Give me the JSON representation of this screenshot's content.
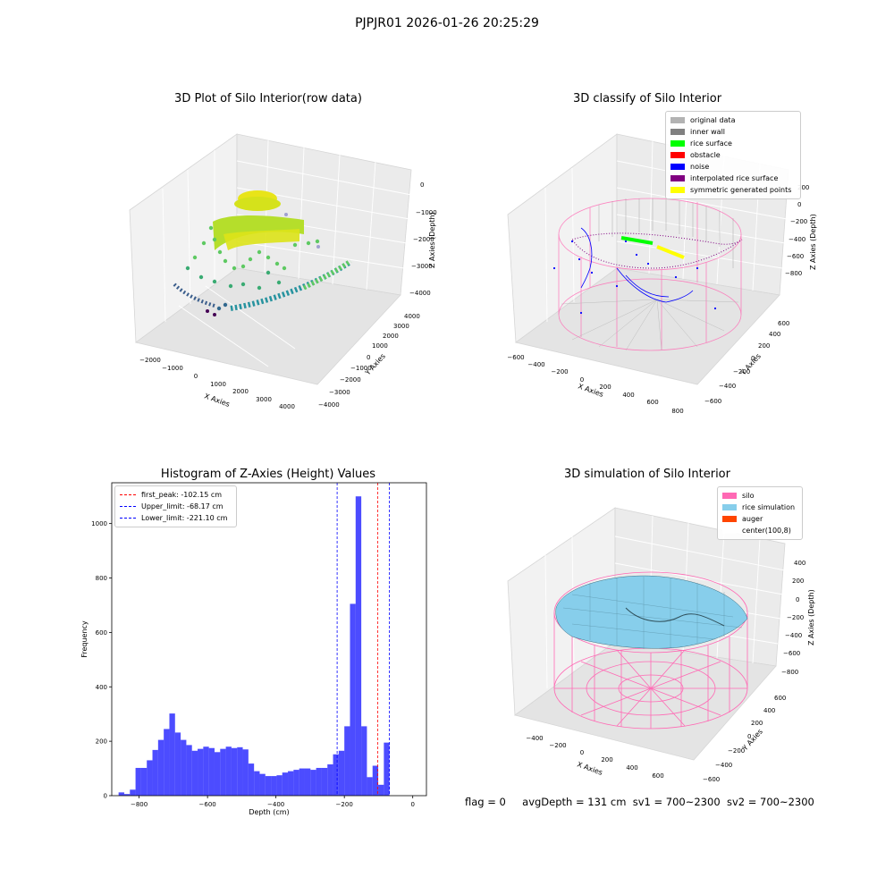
{
  "suptitle": "PJPJR01 2026-01-26 20:25:29",
  "panels": {
    "raw": {
      "title": "3D Plot of Silo Interior(row data)",
      "xlabel": "X Axies",
      "ylabel": "Y Axies",
      "zlabel": "Z Axies (Depth)",
      "xticks": [
        "−2000",
        "−1000",
        "0",
        "1000",
        "2000",
        "3000",
        "4000"
      ],
      "yticks": [
        "−4000",
        "−3000",
        "−2000",
        "−1000",
        "0",
        "1000",
        "2000",
        "3000",
        "4000"
      ],
      "zticks": [
        "0",
        "−1000",
        "−2000",
        "−3000",
        "−4000"
      ]
    },
    "classify": {
      "title": "3D classify of Silo Interior",
      "xlabel": "X Axies",
      "ylabel": "Y Axies",
      "zlabel": "Z Axies (Depth)",
      "xticks": [
        "−600",
        "−400",
        "−200",
        "0",
        "200",
        "400",
        "600",
        "800"
      ],
      "yticks": [
        "−600",
        "−400",
        "−200",
        "0",
        "200",
        "400",
        "600"
      ],
      "zticks": [
        "200",
        "0",
        "−200",
        "−400",
        "−600",
        "−800"
      ],
      "legend": [
        {
          "label": "original data",
          "color": "#b3b3b3"
        },
        {
          "label": "inner wall",
          "color": "#808080"
        },
        {
          "label": "rice surface",
          "color": "#00ff00"
        },
        {
          "label": "obstacle",
          "color": "#ff0000"
        },
        {
          "label": "noise",
          "color": "#0000ff"
        },
        {
          "label": "interpolated rice surface",
          "color": "#800080"
        },
        {
          "label": "symmetric generated points",
          "color": "#ffff00"
        }
      ]
    },
    "simulation": {
      "title": "3D simulation of Silo Interior",
      "xlabel": "X Axies",
      "ylabel": "Y Axies",
      "zlabel": "Z Axies (Depth)",
      "xticks": [
        "−400",
        "−200",
        "0",
        "200",
        "400",
        "600"
      ],
      "yticks": [
        "−600",
        "−400",
        "−200",
        "0",
        "200",
        "400",
        "600"
      ],
      "zticks": [
        "400",
        "200",
        "0",
        "−200",
        "−400",
        "−600",
        "−800"
      ],
      "legend": [
        {
          "label": "silo",
          "color": "#ff69b4"
        },
        {
          "label": "rice simulation",
          "color": "#87ceeb"
        },
        {
          "label": "auger",
          "color": "#ff4500"
        },
        {
          "label": "center(100,8)",
          "color": "#ffffff"
        }
      ]
    }
  },
  "footer": {
    "flag": "flag = 0",
    "avg": "avgDepth = 131 cm",
    "sv1": "sv1 = 700~2300",
    "sv2": "sv2 = 700~2300"
  },
  "chart_data": [
    {
      "type": "bar",
      "title": "Histogram of Z-Axies (Height) Values",
      "xlabel": "Depth (cm)",
      "ylabel": "Frequency",
      "xlim": [
        -880,
        40
      ],
      "ylim": [
        0,
        1150
      ],
      "xticks": [
        -800,
        -600,
        -400,
        -200,
        0
      ],
      "yticks": [
        0,
        200,
        400,
        600,
        800,
        1000
      ],
      "bar_color": "#0000ff",
      "bin_start": -860,
      "bin_width": 16.5,
      "values": [
        12,
        6,
        22,
        102,
        102,
        130,
        168,
        205,
        245,
        302,
        232,
        205,
        186,
        165,
        172,
        180,
        175,
        160,
        172,
        180,
        175,
        178,
        170,
        118,
        90,
        80,
        72,
        72,
        75,
        85,
        90,
        95,
        100,
        100,
        95,
        102,
        102,
        115,
        152,
        165,
        255,
        705,
        1100,
        255,
        68,
        110,
        40,
        195
      ],
      "vlines": [
        {
          "label": "first_peak: -102.15 cm",
          "x": -102.15,
          "color": "#ff0000"
        },
        {
          "label": "Upper_limit: -68.17 cm",
          "x": -68.17,
          "color": "#0000ff"
        },
        {
          "label": "Lower_limit: -221.10 cm",
          "x": -221.1,
          "color": "#0000ff"
        }
      ],
      "legend_position": "upper-left"
    }
  ]
}
